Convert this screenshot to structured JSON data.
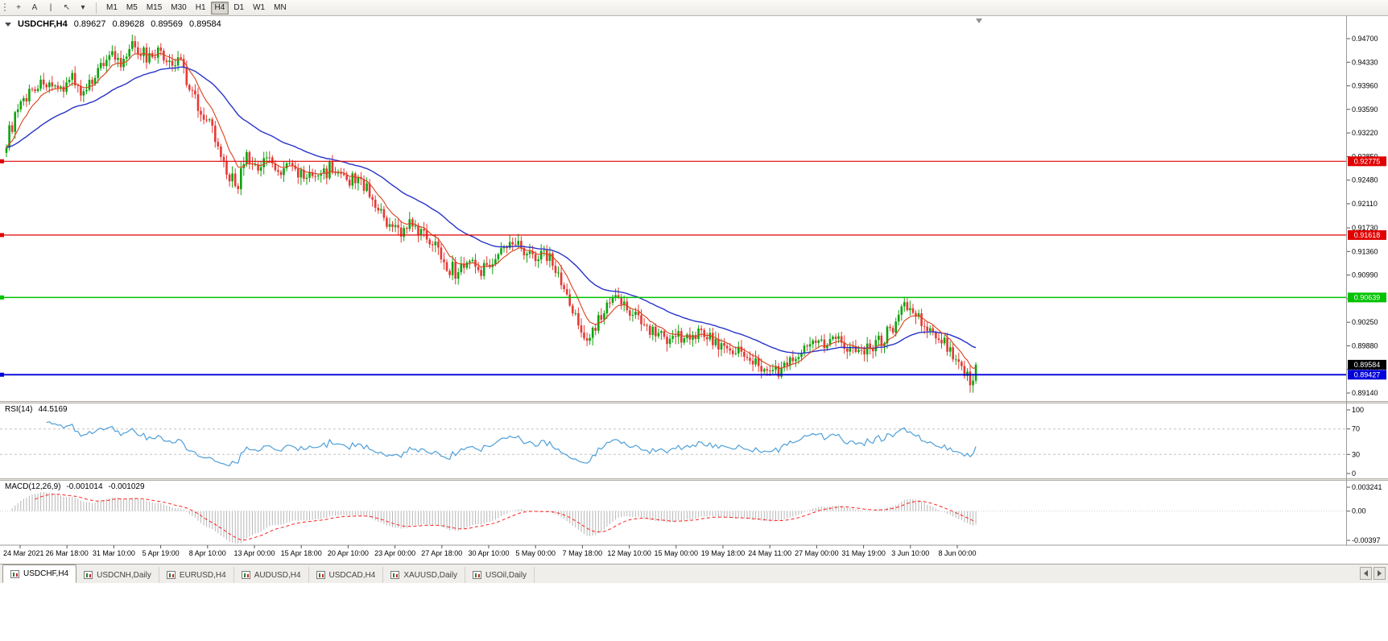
{
  "toolbar": {
    "tools": [
      {
        "name": "crosshair-icon",
        "glyph": "+"
      },
      {
        "name": "text-tool-icon",
        "glyph": "A"
      },
      {
        "name": "vertical-line-icon",
        "glyph": "|"
      },
      {
        "name": "arrow-tool-icon",
        "glyph": "↖"
      },
      {
        "name": "tools-dropdown-caret-icon",
        "glyph": "▾"
      }
    ],
    "timeframes": [
      "M1",
      "M5",
      "M15",
      "M30",
      "H1",
      "H4",
      "D1",
      "W1",
      "MN"
    ],
    "active_timeframe": "H4"
  },
  "chart": {
    "symbol": "USDCHF,H4",
    "ohlc": {
      "open": "0.89627",
      "high": "0.89628",
      "low": "0.89569",
      "close": "0.89584"
    },
    "price_axis": {
      "top": 0.947,
      "bottom": 0.8914,
      "labels": [
        "0.94700",
        "0.94330",
        "0.93960",
        "0.93590",
        "0.93220",
        "0.92850",
        "0.92480",
        "0.92110",
        "0.91730",
        "0.91360",
        "0.90990",
        "0.90620",
        "0.90250",
        "0.89880",
        "0.89510",
        "0.89140"
      ]
    },
    "levels": [
      {
        "value": 0.92775,
        "label": "0.92775",
        "color": "#e00000",
        "width": 1.2
      },
      {
        "value": 0.91618,
        "label": "0.91618",
        "color": "#e00000",
        "width": 1.2
      },
      {
        "value": 0.90639,
        "label": "0.90639",
        "color": "#00c200",
        "width": 1.5
      },
      {
        "value": 0.89427,
        "label": "0.89427",
        "color": "#0000d8",
        "width": 1.8
      }
    ],
    "bid_label": {
      "value": 0.89584,
      "label": "0.89584",
      "color": "#000000"
    },
    "colors": {
      "up": "#0fa30f",
      "down": "#e53935",
      "ma_fast": "#d9421b",
      "ma_slow": "#2733c9"
    }
  },
  "rsi": {
    "label": "RSI(14)",
    "value": "44.5169",
    "period": 14,
    "axis_labels": [
      "100",
      "70",
      "30",
      "0"
    ],
    "levels": [
      70,
      30
    ],
    "color": "#4f9fd8"
  },
  "macd": {
    "label": "MACD(12,26,9)",
    "value_main": "-0.001014",
    "value_signal": "-0.001029",
    "scale_max": 0.003241,
    "scale_min": -0.00397,
    "axis_labels": [
      {
        "text": "0.003241",
        "v": 0.003241
      },
      {
        "text": "0.00",
        "v": 0
      },
      {
        "text": "-0.00397",
        "v": -0.00397
      }
    ],
    "histogram_color": "#b6b6b6",
    "signal_color": "#ff1f1f"
  },
  "time_axis": {
    "labels": [
      "24 Mar 2021",
      "26 Mar 18:00",
      "31 Mar 10:00",
      "5 Apr 19:00",
      "8 Apr 10:00",
      "13 Apr 00:00",
      "15 Apr 18:00",
      "20 Apr 10:00",
      "23 Apr 00:00",
      "27 Apr 18:00",
      "30 Apr 10:00",
      "5 May 00:00",
      "7 May 18:00",
      "12 May 10:00",
      "15 May 00:00",
      "19 May 18:00",
      "24 May 11:00",
      "27 May 00:00",
      "31 May 19:00",
      "3 Jun 10:00",
      "8 Jun 00:00"
    ]
  },
  "tabs": {
    "active": "USDCHF,H4",
    "items": [
      "USDCHF,H4",
      "USDCNH,Daily",
      "EURUSD,H4",
      "AUDUSD,H4",
      "USDCAD,H4",
      "XAUUSD,Daily",
      "USOil,Daily"
    ]
  },
  "chart_data": {
    "type": "candlestick",
    "symbol": "USDCHF",
    "timeframe": "H4",
    "title": "USDCHF,H4 0.89627 0.89628 0.89569 0.89584",
    "x_range": [
      "24 Mar 2021",
      "8 Jun 2021"
    ],
    "y_range": [
      0.8914,
      0.947
    ],
    "bars": 340,
    "last_close": 0.89584,
    "horizontal_lines": [
      0.92775,
      0.91618,
      0.90639,
      0.89427
    ],
    "price_path": [
      [
        0,
        0.931
      ],
      [
        3,
        0.9348
      ],
      [
        8,
        0.939
      ],
      [
        13,
        0.9402
      ],
      [
        17,
        0.9385
      ],
      [
        23,
        0.941
      ],
      [
        27,
        0.9378
      ],
      [
        31,
        0.9415
      ],
      [
        36,
        0.9448
      ],
      [
        40,
        0.9428
      ],
      [
        45,
        0.9462
      ],
      [
        49,
        0.944
      ],
      [
        54,
        0.9448
      ],
      [
        58,
        0.9425
      ],
      [
        61,
        0.9438
      ],
      [
        63,
        0.9405
      ],
      [
        66,
        0.9378
      ],
      [
        69,
        0.9345
      ],
      [
        72,
        0.933
      ],
      [
        75,
        0.928
      ],
      [
        78,
        0.9252
      ],
      [
        81,
        0.9245
      ],
      [
        84,
        0.9282
      ],
      [
        87,
        0.9262
      ],
      [
        91,
        0.9288
      ],
      [
        95,
        0.9258
      ],
      [
        99,
        0.9272
      ],
      [
        104,
        0.925
      ],
      [
        108,
        0.9255
      ],
      [
        113,
        0.9268
      ],
      [
        119,
        0.9245
      ],
      [
        124,
        0.9252
      ],
      [
        129,
        0.921
      ],
      [
        133,
        0.9175
      ],
      [
        137,
        0.9168
      ],
      [
        141,
        0.918
      ],
      [
        146,
        0.9158
      ],
      [
        150,
        0.9148
      ],
      [
        152,
        0.9128
      ],
      [
        157,
        0.9102
      ],
      [
        161,
        0.912
      ],
      [
        167,
        0.9108
      ],
      [
        172,
        0.9135
      ],
      [
        179,
        0.915
      ],
      [
        185,
        0.9128
      ],
      [
        189,
        0.9135
      ],
      [
        193,
        0.91
      ],
      [
        197,
        0.905
      ],
      [
        201,
        0.9012
      ],
      [
        204,
        0.9005
      ],
      [
        208,
        0.9035
      ],
      [
        213,
        0.9062
      ],
      [
        218,
        0.9045
      ],
      [
        224,
        0.902
      ],
      [
        230,
        0.9005
      ],
      [
        234,
        0.9
      ],
      [
        243,
        0.9008
      ],
      [
        250,
        0.8988
      ],
      [
        257,
        0.8975
      ],
      [
        264,
        0.8952
      ],
      [
        268,
        0.8942
      ],
      [
        275,
        0.8968
      ],
      [
        283,
        0.8992
      ],
      [
        290,
        0.8998
      ],
      [
        296,
        0.8985
      ],
      [
        300,
        0.8978
      ],
      [
        306,
        0.8995
      ],
      [
        312,
        0.903
      ],
      [
        314,
        0.9055
      ],
      [
        319,
        0.9032
      ],
      [
        323,
        0.9012
      ],
      [
        327,
        0.8995
      ],
      [
        332,
        0.8972
      ],
      [
        335,
        0.8952
      ],
      [
        337,
        0.892
      ],
      [
        339,
        0.89584
      ]
    ],
    "indicators": [
      {
        "name": "RSI",
        "period": 14,
        "last": 44.5169,
        "levels": [
          70,
          30
        ]
      },
      {
        "name": "MACD",
        "params": [
          12,
          26,
          9
        ],
        "last": [
          -0.001014,
          -0.001029
        ]
      },
      {
        "name": "MA-fast",
        "color": "red-orange"
      },
      {
        "name": "MA-slow",
        "color": "blue"
      }
    ]
  }
}
